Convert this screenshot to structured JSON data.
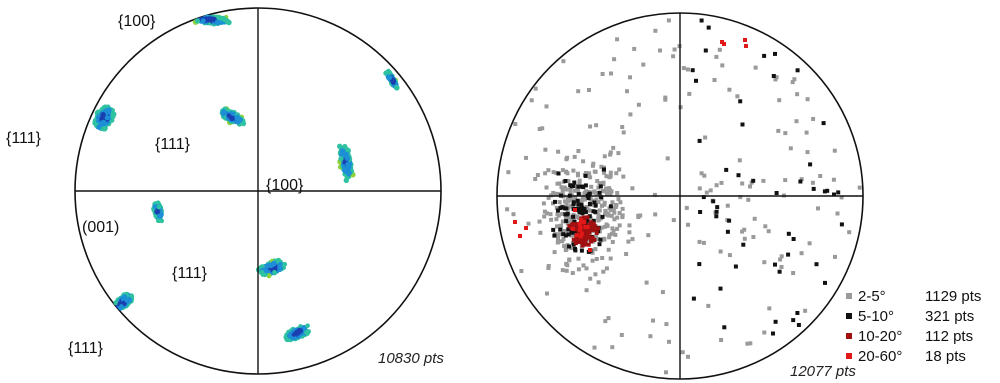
{
  "left_figure": {
    "labels": {
      "top_100": "{100}",
      "left_111": "{111}",
      "center_111": "{111}",
      "right_100": "{100}",
      "left_001": "(001)",
      "lower_111": "{111}",
      "bottom_111": "{111}"
    },
    "point_count": "10830 pts"
  },
  "right_figure": {
    "point_count": "12077 pts",
    "legend": [
      {
        "range": "2-5°",
        "count": "1129 pts",
        "color": "#9a9a9a"
      },
      {
        "range": "5-10°",
        "count": "321 pts",
        "color": "#111111"
      },
      {
        "range": "10-20°",
        "count": "112 pts",
        "color": "#a01010"
      },
      {
        "range": "20-60°",
        "count": "18 pts",
        "color": "#e01818"
      }
    ]
  },
  "colors": {
    "stroke": "#111111",
    "ramp": [
      "#1a3fb0",
      "#1c8fd6",
      "#2fc2a0",
      "#8fd23a",
      "#f0d020",
      "#f07a18"
    ]
  }
}
